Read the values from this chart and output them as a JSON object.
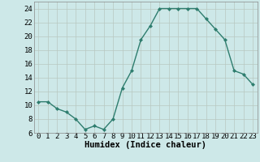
{
  "x": [
    0,
    1,
    2,
    3,
    4,
    5,
    6,
    7,
    8,
    9,
    10,
    11,
    12,
    13,
    14,
    15,
    16,
    17,
    18,
    19,
    20,
    21,
    22,
    23
  ],
  "y": [
    10.5,
    10.5,
    9.5,
    9.0,
    8.0,
    6.5,
    7.0,
    6.5,
    8.0,
    12.5,
    15.0,
    19.5,
    21.5,
    24.0,
    24.0,
    24.0,
    24.0,
    24.0,
    22.5,
    21.0,
    19.5,
    15.0,
    14.5,
    13.0
  ],
  "line_color": "#2e7d6e",
  "marker": "D",
  "marker_size": 2,
  "bg_color": "#cde8e8",
  "grid_color_major": "#b8c8c0",
  "grid_color_minor": "#d4e0dc",
  "xlabel": "Humidex (Indice chaleur)",
  "ylim": [
    6,
    25
  ],
  "xlim": [
    -0.5,
    23.5
  ],
  "yticks": [
    6,
    8,
    10,
    12,
    14,
    16,
    18,
    20,
    22,
    24
  ],
  "xticks": [
    0,
    1,
    2,
    3,
    4,
    5,
    6,
    7,
    8,
    9,
    10,
    11,
    12,
    13,
    14,
    15,
    16,
    17,
    18,
    19,
    20,
    21,
    22,
    23
  ],
  "xlabel_fontsize": 7.5,
  "tick_fontsize": 6.5,
  "line_width": 1.0
}
